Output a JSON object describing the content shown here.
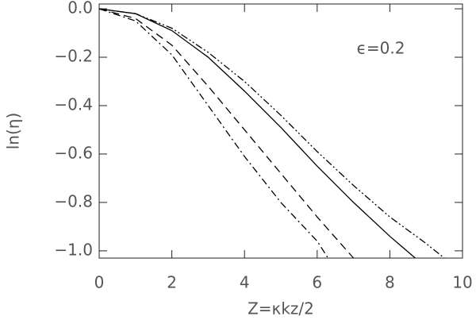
{
  "chart_data": {
    "type": "line",
    "x_label": "Z=κkz/2",
    "y_label": "ln(η)",
    "annotation": "ϵ=0.2",
    "xlim": [
      0,
      10
    ],
    "ylim": [
      -1.03,
      0.02
    ],
    "xticks": [
      0,
      2,
      4,
      6,
      8,
      10
    ],
    "yticks": [
      {
        "value": 0,
        "label": "0.0"
      },
      {
        "value": -0.2,
        "label": "−0.2"
      },
      {
        "value": -0.4,
        "label": "−0.4"
      },
      {
        "value": -0.6,
        "label": "−0.6"
      },
      {
        "value": -0.8,
        "label": "−0.8"
      },
      {
        "value": -1.0,
        "label": "−1.0"
      }
    ],
    "series": [
      {
        "color": "#000",
        "dash": "solid",
        "x": [
          0,
          1,
          2,
          3,
          4,
          5,
          6,
          7,
          8,
          8.7
        ],
        "values": [
          0,
          -0.02,
          -0.09,
          -0.2,
          -0.34,
          -0.49,
          -0.65,
          -0.8,
          -0.94,
          -1.03
        ]
      },
      {
        "color": "#000",
        "dash": "dash-dot-dot",
        "x": [
          0,
          1,
          2,
          3,
          4,
          5,
          6,
          7,
          8,
          9,
          9.5
        ],
        "values": [
          0,
          -0.02,
          -0.08,
          -0.18,
          -0.3,
          -0.44,
          -0.59,
          -0.73,
          -0.86,
          -0.97,
          -1.03
        ]
      },
      {
        "color": "#000",
        "dash": "dash",
        "x": [
          0,
          1,
          2,
          3,
          4,
          5,
          6,
          7
        ],
        "values": [
          0,
          -0.04,
          -0.15,
          -0.32,
          -0.5,
          -0.68,
          -0.86,
          -1.03
        ]
      },
      {
        "color": "#000",
        "dash": "dash-dot",
        "x": [
          0,
          1,
          2,
          3,
          4,
          5,
          6,
          6.3
        ],
        "values": [
          0,
          -0.05,
          -0.19,
          -0.4,
          -0.61,
          -0.8,
          -0.96,
          -1.03
        ]
      }
    ]
  }
}
